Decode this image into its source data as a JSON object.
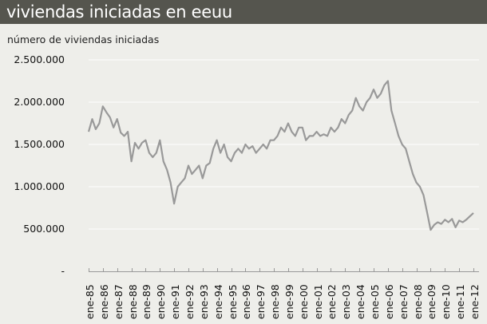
{
  "header": {
    "title": "viviendas iniciadas en eeuu"
  },
  "chart": {
    "subtitle": "número de viviendas iniciadas"
  },
  "colors": {
    "header_bg": "#55554e",
    "background": "#eeeeea",
    "line": "#999999",
    "grid": "#ffffff"
  },
  "chart_data": {
    "type": "line",
    "title": "viviendas iniciadas en eeuu",
    "subtitle": "número de viviendas iniciadas",
    "xlabel": "",
    "ylabel": "número de viviendas iniciadas",
    "ylim": [
      0,
      2500000
    ],
    "yticks": [
      "-",
      "500.000",
      "1.000.000",
      "1.500.000",
      "2.000.000",
      "2.500.000"
    ],
    "grid": true,
    "legend": "none",
    "categories": [
      "ene-85",
      "ene-86",
      "ene-87",
      "ene-88",
      "ene-89",
      "ene-90",
      "ene-91",
      "ene-92",
      "ene-93",
      "ene-94",
      "ene-95",
      "ene-96",
      "ene-97",
      "ene-98",
      "ene-99",
      "ene-00",
      "ene-01",
      "ene-02",
      "ene-03",
      "ene-04",
      "ene-05",
      "ene-06",
      "ene-07",
      "ene-08",
      "ene-09",
      "ene-10",
      "ene-11",
      "ene-12"
    ],
    "series": [
      {
        "name": "viviendas iniciadas",
        "x": [
          1985.0,
          1985.25,
          1985.5,
          1985.75,
          1986.0,
          1986.25,
          1986.5,
          1986.75,
          1987.0,
          1987.25,
          1987.5,
          1987.75,
          1988.0,
          1988.25,
          1988.5,
          1988.75,
          1989.0,
          1989.25,
          1989.5,
          1989.75,
          1990.0,
          1990.25,
          1990.5,
          1990.75,
          1991.0,
          1991.25,
          1991.5,
          1991.75,
          1992.0,
          1992.25,
          1992.5,
          1992.75,
          1993.0,
          1993.25,
          1993.5,
          1993.75,
          1994.0,
          1994.25,
          1994.5,
          1994.75,
          1995.0,
          1995.25,
          1995.5,
          1995.75,
          1996.0,
          1996.25,
          1996.5,
          1996.75,
          1997.0,
          1997.25,
          1997.5,
          1997.75,
          1998.0,
          1998.25,
          1998.5,
          1998.75,
          1999.0,
          1999.25,
          1999.5,
          1999.75,
          2000.0,
          2000.25,
          2000.5,
          2000.75,
          2001.0,
          2001.25,
          2001.5,
          2001.75,
          2002.0,
          2002.25,
          2002.5,
          2002.75,
          2003.0,
          2003.25,
          2003.5,
          2003.75,
          2004.0,
          2004.25,
          2004.5,
          2004.75,
          2005.0,
          2005.25,
          2005.5,
          2005.75,
          2006.0,
          2006.25,
          2006.5,
          2006.75,
          2007.0,
          2007.25,
          2007.5,
          2007.75,
          2008.0,
          2008.25,
          2008.5,
          2008.75,
          2009.0,
          2009.25,
          2009.5,
          2009.75,
          2010.0,
          2010.25,
          2010.5,
          2010.75,
          2011.0,
          2011.25,
          2011.5,
          2011.75,
          2012.0
        ],
        "values": [
          1650000,
          1800000,
          1680000,
          1750000,
          1950000,
          1880000,
          1820000,
          1700000,
          1800000,
          1640000,
          1600000,
          1650000,
          1300000,
          1520000,
          1450000,
          1520000,
          1550000,
          1400000,
          1350000,
          1400000,
          1550000,
          1300000,
          1200000,
          1050000,
          800000,
          1000000,
          1050000,
          1100000,
          1250000,
          1150000,
          1200000,
          1250000,
          1100000,
          1250000,
          1280000,
          1450000,
          1550000,
          1400000,
          1500000,
          1350000,
          1300000,
          1400000,
          1450000,
          1400000,
          1500000,
          1450000,
          1480000,
          1400000,
          1450000,
          1500000,
          1450000,
          1550000,
          1550000,
          1600000,
          1700000,
          1650000,
          1750000,
          1650000,
          1600000,
          1700000,
          1700000,
          1550000,
          1600000,
          1600000,
          1650000,
          1600000,
          1620000,
          1600000,
          1700000,
          1650000,
          1700000,
          1800000,
          1750000,
          1850000,
          1900000,
          2050000,
          1950000,
          1900000,
          2000000,
          2050000,
          2150000,
          2050000,
          2100000,
          2200000,
          2250000,
          1900000,
          1750000,
          1600000,
          1500000,
          1450000,
          1300000,
          1150000,
          1050000,
          1000000,
          900000,
          700000,
          490000,
          550000,
          580000,
          560000,
          610000,
          580000,
          620000,
          520000,
          600000,
          580000,
          610000,
          650000,
          690000
        ]
      }
    ]
  }
}
